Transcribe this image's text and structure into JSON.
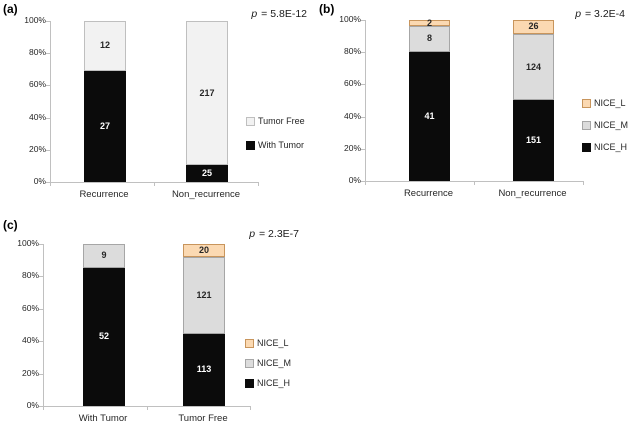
{
  "figure": {
    "background": "#ffffff",
    "axis_color": "#c0c0c0",
    "text_color": "#262626"
  },
  "chart_data": [
    {
      "type": "bar",
      "subtype": "stacked-100-percent-column",
      "panel_label": "(a)",
      "p_italic": "p",
      "p_text": " = 5.8E-12",
      "categories": [
        "Recurrence",
        "Non_recurrence"
      ],
      "series": [
        {
          "name": "With Tumor",
          "values": [
            27,
            25
          ],
          "color": "#0b0b0b",
          "border": "#0b0b0b",
          "label_color": "#ffffff"
        },
        {
          "name": "Tumor Free",
          "values": [
            12,
            217
          ],
          "color": "#f2f2f2",
          "border": "#bfbfbf",
          "label_color": "#262626"
        }
      ],
      "legend": [
        "Tumor Free",
        "With Tumor"
      ],
      "legend_position": "right",
      "y_ticks": [
        "0%",
        "20%",
        "40%",
        "60%",
        "80%",
        "100%"
      ],
      "ylim": [
        0,
        100
      ],
      "grid": false
    },
    {
      "type": "bar",
      "subtype": "stacked-100-percent-column",
      "panel_label": "(b)",
      "p_italic": "p",
      "p_text": " = 3.2E-4",
      "categories": [
        "Recurrence",
        "Non_recurrence"
      ],
      "series": [
        {
          "name": "NICE_H",
          "values": [
            41,
            151
          ],
          "color": "#0b0b0b",
          "border": "#0b0b0b",
          "label_color": "#ffffff"
        },
        {
          "name": "NICE_M",
          "values": [
            8,
            124
          ],
          "color": "#dcdcdc",
          "border": "#a6a6a6",
          "label_color": "#262626"
        },
        {
          "name": "NICE_L",
          "values": [
            2,
            26
          ],
          "color": "#fbd9b2",
          "border": "#c8955c",
          "label_color": "#262626"
        }
      ],
      "legend": [
        "NICE_L",
        "NICE_M",
        "NICE_H"
      ],
      "legend_position": "right",
      "y_ticks": [
        "0%",
        "20%",
        "40%",
        "60%",
        "80%",
        "100%"
      ],
      "ylim": [
        0,
        100
      ],
      "grid": false
    },
    {
      "type": "bar",
      "subtype": "stacked-100-percent-column",
      "panel_label": "(c)",
      "p_italic": "p",
      "p_text": " = 2.3E-7",
      "categories": [
        "With Tumor",
        "Tumor Free"
      ],
      "series": [
        {
          "name": "NICE_H",
          "values": [
            52,
            113
          ],
          "color": "#0b0b0b",
          "border": "#0b0b0b",
          "label_color": "#ffffff"
        },
        {
          "name": "NICE_M",
          "values": [
            9,
            121
          ],
          "color": "#dcdcdc",
          "border": "#a6a6a6",
          "label_color": "#262626"
        },
        {
          "name": "NICE_L",
          "values": [
            0,
            20
          ],
          "color": "#fbd9b2",
          "border": "#c8955c",
          "label_color": "#262626"
        }
      ],
      "legend": [
        "NICE_L",
        "NICE_M",
        "NICE_H"
      ],
      "legend_position": "right",
      "y_ticks": [
        "0%",
        "20%",
        "40%",
        "60%",
        "80%",
        "100%"
      ],
      "ylim": [
        0,
        100
      ],
      "grid": false
    }
  ]
}
